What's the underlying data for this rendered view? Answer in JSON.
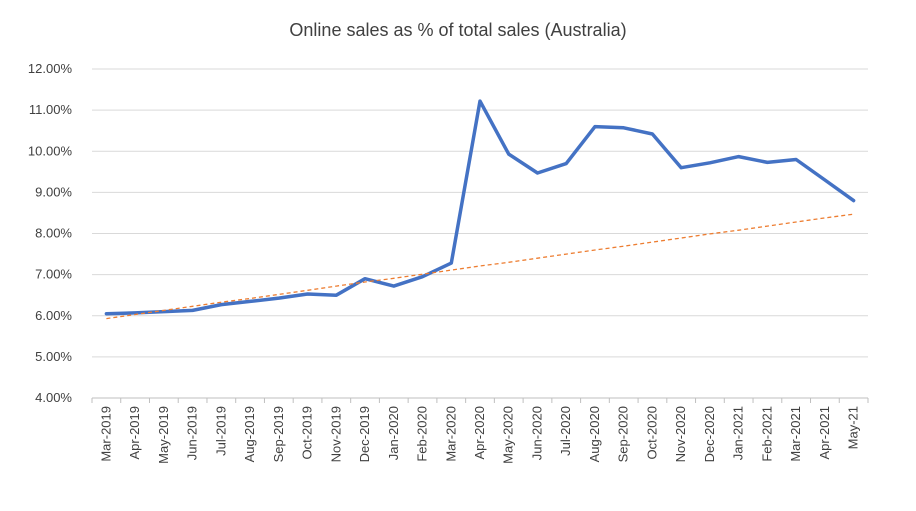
{
  "chart_data": {
    "type": "line",
    "title": "Online sales as % of total sales (Australia)",
    "xlabel": "",
    "ylabel": "",
    "ylim": [
      4,
      12
    ],
    "yticks": [
      "4.00%",
      "5.00%",
      "6.00%",
      "7.00%",
      "8.00%",
      "9.00%",
      "10.00%",
      "11.00%",
      "12.00%"
    ],
    "grid": true,
    "categories": [
      "Mar-2019",
      "Apr-2019",
      "May-2019",
      "Jun-2019",
      "Jul-2019",
      "Aug-2019",
      "Sep-2019",
      "Oct-2019",
      "Nov-2019",
      "Dec-2019",
      "Jan-2020",
      "Feb-2020",
      "Mar-2020",
      "Apr-2020",
      "May-2020",
      "Jun-2020",
      "Jul-2020",
      "Aug-2020",
      "Sep-2020",
      "Oct-2020",
      "Nov-2020",
      "Dec-2020",
      "Jan-2021",
      "Feb-2021",
      "Mar-2021",
      "Apr-2021",
      "May-21"
    ],
    "series": [
      {
        "name": "Online sales %",
        "color": "#4472C4",
        "values": [
          6.05,
          6.07,
          6.1,
          6.13,
          6.27,
          6.35,
          6.43,
          6.53,
          6.5,
          6.9,
          6.72,
          6.95,
          7.28,
          11.22,
          9.93,
          9.47,
          9.7,
          10.6,
          10.57,
          10.42,
          9.6,
          9.72,
          9.87,
          9.73,
          9.8,
          9.3,
          8.8
        ]
      },
      {
        "name": "Linear trend",
        "color": "#ED7D31",
        "style": "dashed",
        "values": [
          5.93,
          6.03,
          6.13,
          6.23,
          6.33,
          6.42,
          6.52,
          6.62,
          6.72,
          6.82,
          6.91,
          7.01,
          7.11,
          7.21,
          7.3,
          7.4,
          7.5,
          7.6,
          7.69,
          7.79,
          7.89,
          7.99,
          8.08,
          8.18,
          8.28,
          8.38,
          8.47
        ]
      }
    ],
    "legend": "none"
  }
}
